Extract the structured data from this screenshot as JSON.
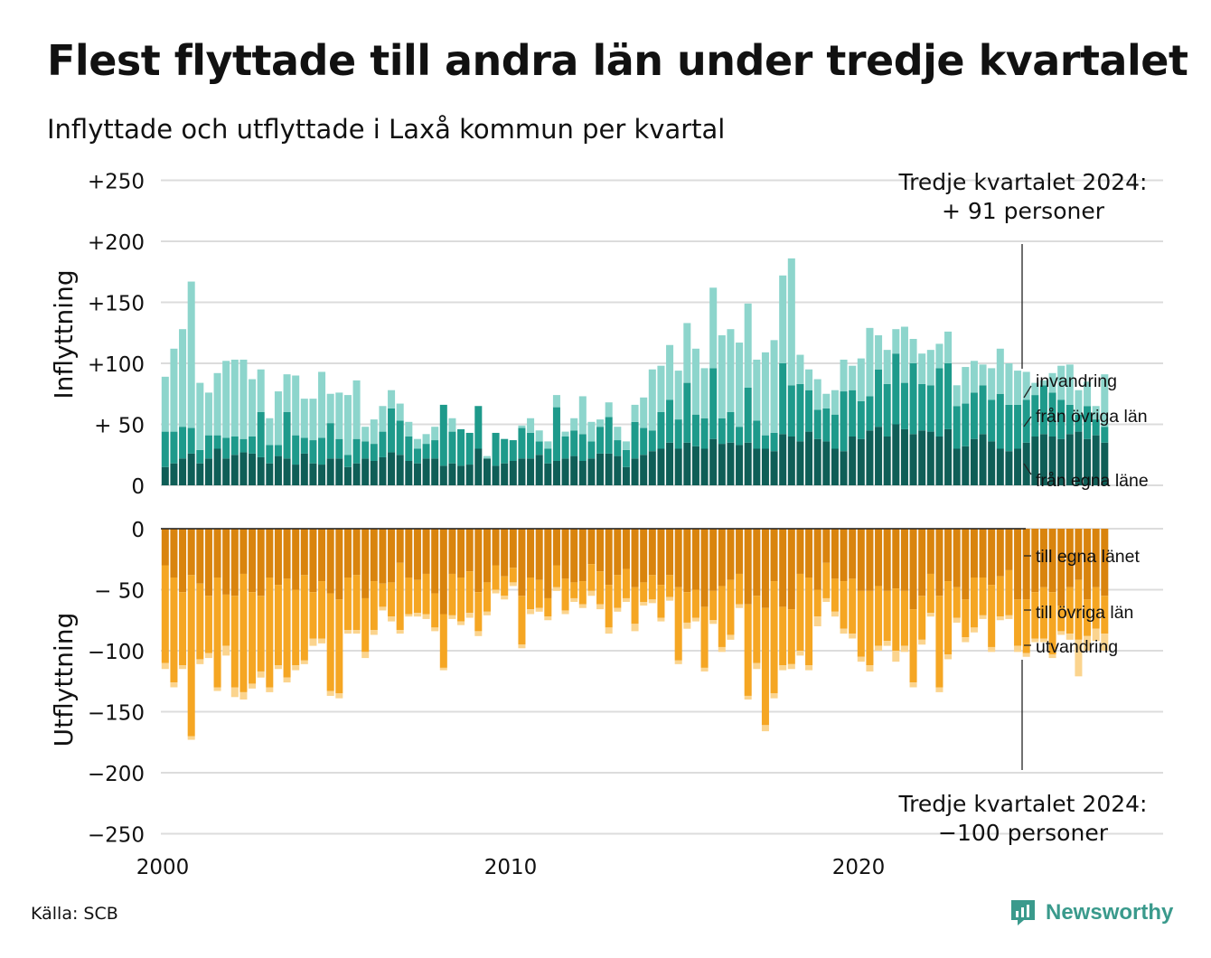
{
  "header": {
    "title": "Flest flyttade till andra län under tredje kvartalet",
    "subtitle": "Inflyttade och utflyttade i Laxå kommun per kvartal"
  },
  "footer": {
    "source": "Källa: SCB",
    "brand": "Newsworthy"
  },
  "colors": {
    "in_egna": "#0f5e57",
    "in_ovriga": "#1e9a8b",
    "in_invandring": "#8dd5cc",
    "ut_egna": "#d9840e",
    "ut_ovriga": "#f5a623",
    "ut_utvandring": "#fbd48e",
    "grid": "#dcdcdc",
    "brand": "#3a9a8c"
  },
  "chart_data": [
    {
      "type": "bar",
      "stacked": true,
      "panel": "top",
      "ylabel": "Inflyttning",
      "y_ticks": [
        "+250",
        "+200",
        "+150",
        "+100",
        "+ 50",
        "0"
      ],
      "ylim": [
        0,
        250
      ],
      "x_ticks": [
        "2000",
        "2010",
        "2020"
      ],
      "x_start": "2000 Q1",
      "x_end": "2024 Q3",
      "annotation": {
        "line1": "Tredje kvartalet 2024:",
        "line2": "+ 91 personer"
      },
      "series": [
        {
          "name": "från egna läne",
          "values": [
            15,
            18,
            22,
            26,
            18,
            22,
            30,
            22,
            25,
            27,
            26,
            23,
            18,
            24,
            22,
            17,
            26,
            18,
            17,
            22,
            22,
            15,
            18,
            22,
            20,
            23,
            27,
            25,
            20,
            18,
            22,
            22,
            16,
            18,
            16,
            17,
            30,
            22,
            16,
            18,
            20,
            22,
            22,
            25,
            18,
            20,
            22,
            24,
            20,
            22,
            26,
            26,
            24,
            15,
            22,
            25,
            28,
            30,
            35,
            30,
            35,
            32,
            30,
            38,
            34,
            35,
            33,
            35,
            30,
            30,
            28,
            42,
            40,
            36,
            44,
            38,
            36,
            30,
            28,
            40,
            38,
            45,
            48,
            40,
            50,
            46,
            42,
            45,
            44,
            40,
            46,
            30,
            32,
            38,
            42,
            36,
            30,
            28,
            30,
            35,
            40,
            42,
            40,
            38,
            42,
            44,
            38,
            41,
            35
          ]
        },
        {
          "name": "från övriga län",
          "values": [
            29,
            26,
            26,
            21,
            11,
            19,
            11,
            17,
            15,
            11,
            14,
            37,
            15,
            9,
            38,
            24,
            13,
            19,
            22,
            29,
            16,
            10,
            20,
            14,
            14,
            21,
            36,
            28,
            20,
            12,
            12,
            15,
            50,
            26,
            30,
            26,
            35,
            0,
            27,
            20,
            17,
            25,
            21,
            11,
            12,
            44,
            18,
            21,
            22,
            14,
            22,
            30,
            13,
            14,
            30,
            22,
            17,
            30,
            35,
            24,
            49,
            26,
            25,
            58,
            21,
            25,
            15,
            45,
            23,
            11,
            15,
            58,
            42,
            47,
            34,
            24,
            27,
            28,
            49,
            38,
            31,
            28,
            47,
            43,
            58,
            38,
            58,
            38,
            38,
            56,
            54,
            35,
            35,
            38,
            40,
            34,
            45,
            38,
            36,
            35,
            34,
            40,
            36,
            32,
            24,
            14,
            27,
            13,
            13
          ]
        },
        {
          "name": "invandring",
          "values": [
            45,
            68,
            80,
            120,
            55,
            35,
            51,
            63,
            63,
            65,
            47,
            35,
            22,
            44,
            31,
            49,
            32,
            34,
            54,
            24,
            38,
            49,
            48,
            12,
            20,
            21,
            15,
            14,
            12,
            8,
            8,
            11,
            0,
            11,
            0,
            0,
            0,
            2,
            0,
            0,
            0,
            2,
            12,
            9,
            6,
            10,
            4,
            10,
            31,
            16,
            6,
            12,
            11,
            7,
            14,
            25,
            50,
            38,
            45,
            40,
            49,
            54,
            41,
            66,
            68,
            68,
            69,
            69,
            50,
            68,
            76,
            72,
            104,
            24,
            17,
            25,
            12,
            20,
            26,
            20,
            35,
            56,
            28,
            28,
            20,
            46,
            20,
            25,
            29,
            20,
            26,
            17,
            30,
            26,
            17,
            26,
            37,
            34,
            28,
            23,
            10,
            4,
            16,
            28,
            33,
            20,
            20,
            11,
            43
          ]
        }
      ]
    },
    {
      "type": "bar",
      "stacked": true,
      "panel": "bottom",
      "ylabel": "Utflyttning",
      "y_ticks": [
        "0",
        "− 50",
        "−100",
        "−150",
        "−200",
        "−250"
      ],
      "ylim": [
        -250,
        0
      ],
      "x_ticks": [
        "2000",
        "2010",
        "2020"
      ],
      "x_start": "2000 Q1",
      "x_end": "2024 Q3",
      "annotation": {
        "line1": "Tredje kvartalet 2024:",
        "line2": "−100 personer"
      },
      "series": [
        {
          "name": "till egna länet",
          "values": [
            -30,
            -40,
            -52,
            -38,
            -45,
            -55,
            -40,
            -54,
            -55,
            -37,
            -52,
            -55,
            -40,
            -46,
            -41,
            -50,
            -38,
            -52,
            -43,
            -53,
            -58,
            -40,
            -38,
            -57,
            -43,
            -45,
            -44,
            -28,
            -40,
            -42,
            -37,
            -53,
            -70,
            -37,
            -40,
            -35,
            -52,
            -44,
            -30,
            -39,
            -32,
            -55,
            -40,
            -42,
            -57,
            -30,
            -41,
            -44,
            -43,
            -29,
            -35,
            -46,
            -38,
            -33,
            -48,
            -44,
            -38,
            -46,
            -38,
            -48,
            -52,
            -50,
            -64,
            -51,
            -47,
            -42,
            -37,
            -62,
            -55,
            -65,
            -43,
            -64,
            -66,
            -37,
            -40,
            -50,
            -28,
            -41,
            -43,
            -41,
            -51,
            -51,
            -47,
            -51,
            -49,
            -51,
            -66,
            -55,
            -37,
            -55,
            -43,
            -48,
            -58,
            -40,
            -40,
            -46,
            -39,
            -34,
            -58,
            -58,
            -52,
            -48,
            -52,
            -63,
            -48,
            -42,
            -58,
            -48,
            -55
          ]
        },
        {
          "name": "till övriga län",
          "values": [
            -80,
            -86,
            -60,
            -132,
            -62,
            -47,
            -90,
            -42,
            -75,
            -97,
            -75,
            -62,
            -90,
            -66,
            -81,
            -62,
            -70,
            -38,
            -47,
            -80,
            -77,
            -43,
            -45,
            -44,
            -40,
            -19,
            -28,
            -55,
            -30,
            -27,
            -33,
            -28,
            -44,
            -34,
            -36,
            -34,
            -32,
            -24,
            -20,
            -16,
            -12,
            -40,
            -26,
            -23,
            -15,
            -18,
            -26,
            -13,
            -19,
            -22,
            -27,
            -35,
            -27,
            -24,
            -30,
            -16,
            -20,
            -27,
            -18,
            -60,
            -25,
            -23,
            -50,
            -24,
            -50,
            -45,
            -25,
            -75,
            -55,
            -96,
            -92,
            -48,
            -45,
            -63,
            -72,
            -22,
            -29,
            -27,
            -39,
            -45,
            -54,
            -61,
            -49,
            -41,
            -51,
            -45,
            -60,
            -36,
            -32,
            -75,
            -60,
            -25,
            -31,
            -41,
            -31,
            -51,
            -33,
            -37,
            -38,
            -44,
            -38,
            -42,
            -51,
            -21,
            -38,
            -49,
            -30,
            -34,
            -31
          ]
        },
        {
          "name": "utvandring",
          "values": [
            -5,
            -4,
            -3,
            -3,
            -4,
            -4,
            -3,
            -8,
            -8,
            -6,
            -4,
            -5,
            -4,
            -3,
            -4,
            -4,
            -3,
            -6,
            -4,
            -4,
            -4,
            -3,
            -3,
            -5,
            -4,
            -3,
            -4,
            -3,
            -2,
            -3,
            -4,
            -3,
            -2,
            -3,
            -3,
            -4,
            -4,
            -3,
            -3,
            -3,
            -3,
            -3,
            -4,
            -3,
            -3,
            -3,
            -3,
            -3,
            -3,
            -4,
            -4,
            -5,
            -3,
            -3,
            -6,
            -3,
            -3,
            -3,
            -3,
            -3,
            -5,
            -3,
            -3,
            -3,
            -4,
            -4,
            -3,
            -3,
            -5,
            -5,
            -4,
            -4,
            -4,
            -4,
            -4,
            -8,
            -3,
            -4,
            -4,
            -4,
            -4,
            -5,
            -4,
            -4,
            -9,
            -5,
            -4,
            -4,
            -3,
            -4,
            -4,
            -4,
            -4,
            -4,
            -3,
            -4,
            -3,
            -3,
            -5,
            -3,
            -3,
            -3,
            -3,
            -3,
            -5,
            -30,
            -12,
            -10,
            -14
          ]
        }
      ]
    }
  ]
}
